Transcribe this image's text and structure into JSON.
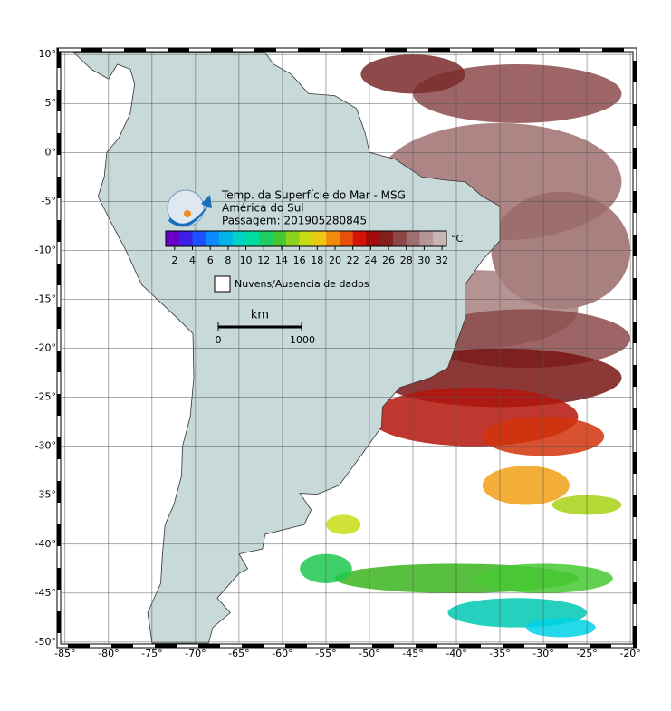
{
  "map": {
    "lonlim": [
      -85.4,
      -19.8
    ],
    "latlim": [
      10.2,
      -50.1
    ],
    "lon_ticks": [
      {
        "value": -85,
        "label": "-85°"
      },
      {
        "value": -80,
        "label": "-80°"
      },
      {
        "value": -75,
        "label": "-75°"
      },
      {
        "value": -70,
        "label": "-70°"
      },
      {
        "value": -65,
        "label": "-65°"
      },
      {
        "value": -60,
        "label": "-60°"
      },
      {
        "value": -55,
        "label": "-55°"
      },
      {
        "value": -50,
        "label": "-50°"
      },
      {
        "value": -45,
        "label": "-45°"
      },
      {
        "value": -40,
        "label": "-40°"
      },
      {
        "value": -35,
        "label": "-35°"
      },
      {
        "value": -30,
        "label": "-30°"
      },
      {
        "value": -25,
        "label": "-25°"
      },
      {
        "value": -20,
        "label": "-20°"
      }
    ],
    "lat_ticks": [
      {
        "value": 10,
        "label": "10°"
      },
      {
        "value": 5,
        "label": "5°"
      },
      {
        "value": 0,
        "label": "0°"
      },
      {
        "value": -5,
        "label": "-5°"
      },
      {
        "value": -10,
        "label": "-10°"
      },
      {
        "value": -15,
        "label": "-15°"
      },
      {
        "value": -20,
        "label": "-20°"
      },
      {
        "value": -25,
        "label": "-25°"
      },
      {
        "value": -30,
        "label": "-30°"
      },
      {
        "value": -35,
        "label": "-35°"
      },
      {
        "value": -40,
        "label": "-40°"
      },
      {
        "value": -45,
        "label": "-45°"
      },
      {
        "value": -50,
        "label": "-50°"
      }
    ],
    "grid": true
  },
  "header": {
    "title": "Temp. da Superfície do Mar - MSG",
    "region": "América do Sul",
    "pass": "Passagem: 201905280845"
  },
  "colorbar": {
    "unit": "°C",
    "range": [
      1,
      32.5
    ],
    "ticks": [
      2,
      4,
      6,
      8,
      10,
      12,
      14,
      16,
      18,
      20,
      22,
      24,
      26,
      28,
      30,
      32
    ],
    "colors": [
      "#6a00c8",
      "#3c1ee6",
      "#1e50ff",
      "#0a8cff",
      "#00b4e6",
      "#00d2c8",
      "#00dca0",
      "#1ecc64",
      "#46c832",
      "#8cd21e",
      "#c8dc14",
      "#f0c814",
      "#f08c0a",
      "#e8500a",
      "#d2140a",
      "#a00a0a",
      "#821e1e",
      "#8c4646",
      "#a06e6e",
      "#b49696",
      "#c8b4b4"
    ]
  },
  "legend": {
    "clouds": "Nuvens/Ausencia de dados"
  },
  "scale": {
    "unit": "km",
    "start": "0",
    "end": "1000"
  }
}
